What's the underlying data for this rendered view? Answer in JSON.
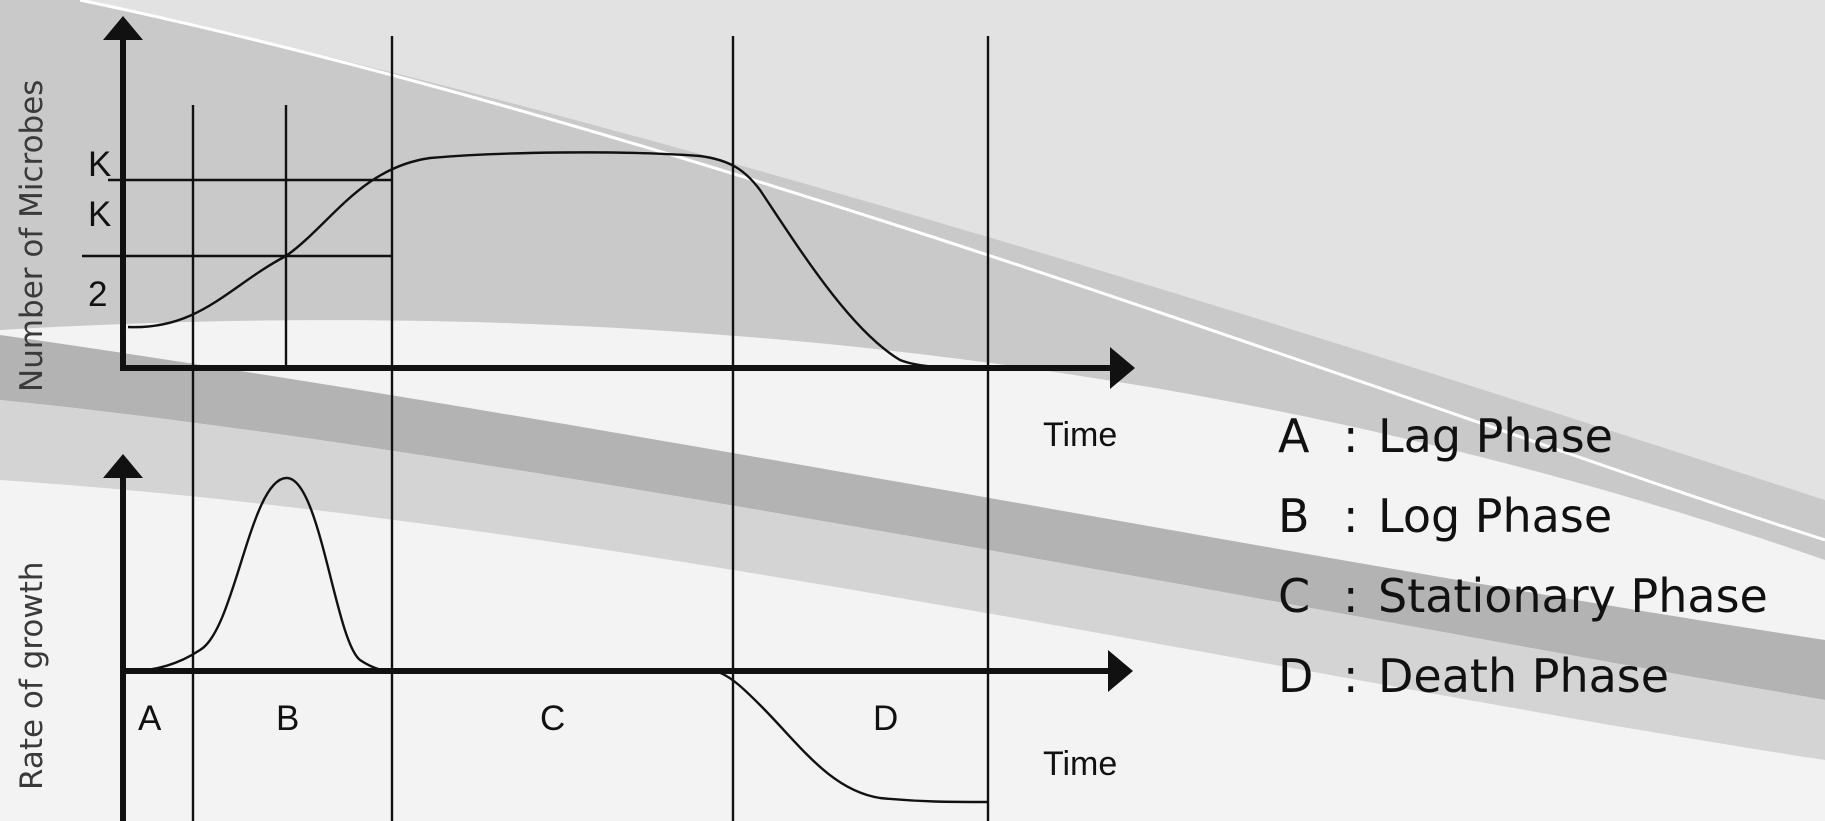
{
  "growth_diagram": {
    "top_panel": {
      "y_axis_title": "Number of Microbes",
      "y_labels": [
        "K",
        "K",
        "2"
      ],
      "x_axis_title": "Time"
    },
    "bottom_panel": {
      "y_axis_title": "Rate of growth",
      "phase_letters": [
        "A",
        "B",
        "C",
        "D"
      ],
      "x_axis_title": "Time"
    },
    "legend": [
      {
        "letter": "A",
        "separator": ":",
        "phase": "Lag Phase"
      },
      {
        "letter": "B",
        "separator": ":",
        "phase": "Log Phase"
      },
      {
        "letter": "C",
        "separator": ":",
        "phase": "Stationary Phase"
      },
      {
        "letter": "D",
        "separator": ":",
        "phase": "Death Phase"
      }
    ],
    "colors": {
      "background": "#f3f3f3",
      "band_light": "#dedede",
      "band_dark": "#b9b9b9",
      "ink": "#111111"
    }
  }
}
